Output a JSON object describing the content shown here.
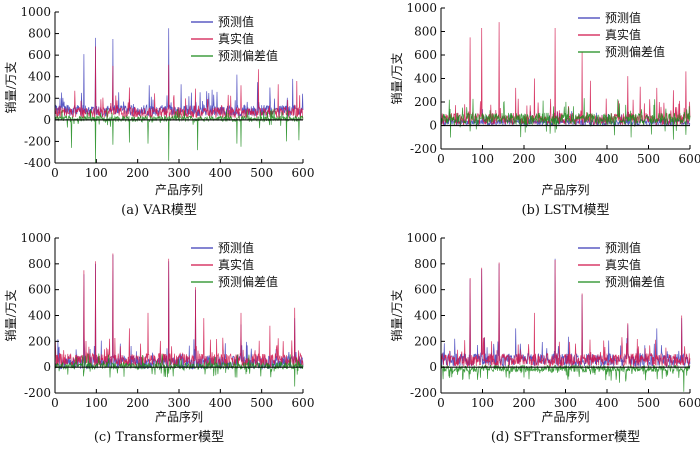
{
  "colors": {
    "predicted": "#3a3ab8",
    "actual": "#d0144a",
    "deviation": "#1a8a1a",
    "axis": "#000000"
  },
  "chart_data": [
    {
      "type": "line",
      "caption": "(a)  VAR模型",
      "xlabel": "产品序列",
      "ylabel": "销量/万支",
      "xlim": [
        0,
        600
      ],
      "ylim": [
        -400,
        1000
      ],
      "xticks": [
        0,
        100,
        200,
        300,
        400,
        500,
        600
      ],
      "yticks": [
        -400,
        -200,
        0,
        200,
        400,
        600,
        800,
        1000
      ],
      "series_names": [
        "预测值",
        "真实值",
        "预测偏差值"
      ],
      "series": [
        {
          "name": "预测值",
          "base": 90,
          "spikes": [
            [
              12,
              200
            ],
            [
              70,
              610
            ],
            [
              98,
              760
            ],
            [
              140,
              750
            ],
            [
              228,
              320
            ],
            [
              275,
              850
            ],
            [
              305,
              330
            ],
            [
              380,
              280
            ],
            [
              440,
              420
            ],
            [
              490,
              350
            ],
            [
              520,
              300
            ],
            [
              575,
              380
            ]
          ]
        },
        {
          "name": "真实值",
          "base": 70,
          "spikes": [
            [
              48,
              270
            ],
            [
              98,
              680
            ],
            [
              140,
              500
            ],
            [
              180,
              300
            ],
            [
              275,
              510
            ],
            [
              340,
              290
            ],
            [
              450,
              320
            ],
            [
              492,
              470
            ],
            [
              540,
              330
            ],
            [
              585,
              360
            ]
          ]
        },
        {
          "name": "预测偏差值",
          "base": 10,
          "spikes": [
            [
              40,
              -260
            ],
            [
              98,
              -400
            ],
            [
              140,
              -230
            ],
            [
              180,
              -210
            ],
            [
              225,
              -220
            ],
            [
              275,
              -380
            ],
            [
              345,
              -280
            ],
            [
              440,
              -220
            ],
            [
              450,
              -250
            ],
            [
              560,
              -200
            ],
            [
              590,
              -190
            ]
          ]
        }
      ],
      "legend_position": "top-right"
    },
    {
      "type": "line",
      "caption": "(b)  LSTM模型",
      "xlabel": "产品序列",
      "ylabel": "销量/万支",
      "xlim": [
        0,
        600
      ],
      "ylim": [
        -200,
        1000
      ],
      "xticks": [
        0,
        100,
        200,
        300,
        400,
        500,
        600
      ],
      "yticks": [
        -200,
        0,
        200,
        400,
        600,
        800,
        1000
      ],
      "series_names": [
        "预测值",
        "真实值",
        "预测偏差值"
      ],
      "series": [
        {
          "name": "预测值",
          "base": 30,
          "spikes": [
            [
              20,
              120
            ],
            [
              100,
              140
            ],
            [
              275,
              160
            ],
            [
              450,
              120
            ]
          ]
        },
        {
          "name": "真实值",
          "base": 60,
          "spikes": [
            [
              70,
              750
            ],
            [
              98,
              830
            ],
            [
              140,
              880
            ],
            [
              180,
              320
            ],
            [
              225,
              400
            ],
            [
              275,
              830
            ],
            [
              340,
              630
            ],
            [
              360,
              380
            ],
            [
              450,
              420
            ],
            [
              480,
              330
            ],
            [
              520,
              320
            ],
            [
              560,
              300
            ],
            [
              590,
              460
            ]
          ]
        },
        {
          "name": "预测偏差值",
          "base": 60,
          "spikes": [
            [
              70,
              -50
            ],
            [
              275,
              -60
            ],
            [
              560,
              -120
            ],
            [
              590,
              -80
            ]
          ]
        }
      ],
      "legend_position": "top-right"
    },
    {
      "type": "line",
      "caption": "(c)  Transformer模型",
      "xlabel": "产品序列",
      "ylabel": "销量/万支",
      "xlim": [
        0,
        600
      ],
      "ylim": [
        -200,
        1000
      ],
      "xticks": [
        0,
        100,
        200,
        300,
        400,
        500,
        600
      ],
      "yticks": [
        -200,
        0,
        200,
        400,
        600,
        800,
        1000
      ],
      "series_names": [
        "预测值",
        "真实值",
        "预测偏差值"
      ],
      "series": [
        {
          "name": "预测值",
          "base": 40,
          "spikes": [
            [
              70,
              720
            ],
            [
              98,
              800
            ],
            [
              140,
              870
            ],
            [
              275,
              820
            ],
            [
              340,
              600
            ],
            [
              450,
              330
            ],
            [
              580,
              380
            ]
          ]
        },
        {
          "name": "真实值",
          "base": 60,
          "spikes": [
            [
              70,
              750
            ],
            [
              98,
              820
            ],
            [
              140,
              880
            ],
            [
              180,
              300
            ],
            [
              225,
              420
            ],
            [
              275,
              840
            ],
            [
              340,
              620
            ],
            [
              360,
              380
            ],
            [
              450,
              420
            ],
            [
              520,
              320
            ],
            [
              580,
              460
            ]
          ]
        },
        {
          "name": "预测偏差值",
          "base": 10,
          "spikes": [
            [
              70,
              -40
            ],
            [
              275,
              -50
            ],
            [
              440,
              -80
            ],
            [
              580,
              -150
            ]
          ]
        }
      ],
      "legend_position": "top-right"
    },
    {
      "type": "line",
      "caption": "(d)  SFTransformer模型",
      "xlabel": "产品序列",
      "ylabel": "销量/万支",
      "xlim": [
        0,
        600
      ],
      "ylim": [
        -200,
        1000
      ],
      "xticks": [
        0,
        100,
        200,
        300,
        400,
        500,
        600
      ],
      "yticks": [
        -200,
        0,
        200,
        400,
        600,
        800,
        1000
      ],
      "series_names": [
        "预测值",
        "真实值",
        "预测偏差值"
      ],
      "series": [
        {
          "name": "预测值",
          "base": 60,
          "spikes": [
            [
              70,
              680
            ],
            [
              98,
              760
            ],
            [
              140,
              800
            ],
            [
              180,
              300
            ],
            [
              275,
              840
            ],
            [
              340,
              560
            ],
            [
              450,
              330
            ],
            [
              520,
              300
            ],
            [
              580,
              380
            ]
          ]
        },
        {
          "name": "真实值",
          "base": 60,
          "spikes": [
            [
              70,
              690
            ],
            [
              98,
              770
            ],
            [
              140,
              810
            ],
            [
              225,
              420
            ],
            [
              275,
              830
            ],
            [
              340,
              570
            ],
            [
              450,
              340
            ],
            [
              580,
              400
            ]
          ]
        },
        {
          "name": "预测偏差值",
          "base": -10,
          "spikes": [
            [
              40,
              -60
            ],
            [
              200,
              -80
            ],
            [
              430,
              -120
            ],
            [
              445,
              -110
            ],
            [
              585,
              -190
            ]
          ]
        }
      ],
      "legend_position": "top-right"
    }
  ]
}
